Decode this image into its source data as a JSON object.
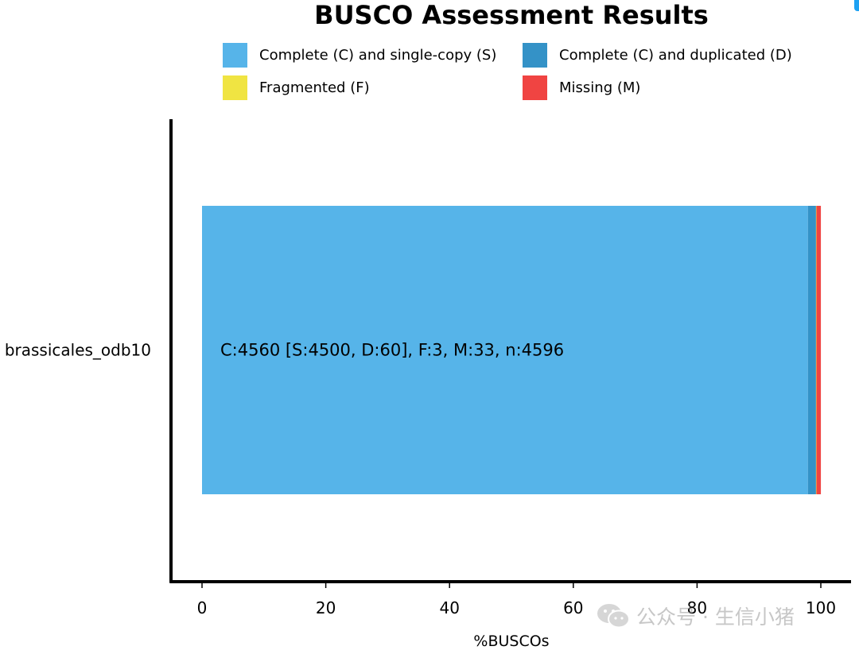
{
  "chart_data": {
    "type": "bar",
    "orientation": "horizontal",
    "stacked": true,
    "title": "BUSCO Assessment Results",
    "xlabel": "%BUSCOs",
    "ylabel": "",
    "xlim": [
      0,
      100
    ],
    "xticks": [
      0,
      20,
      40,
      60,
      80,
      100
    ],
    "categories": [
      "brassicales_odb10"
    ],
    "series": [
      {
        "name": "Complete (C) and single-copy (S)",
        "color": "#56B4E9",
        "values": [
          97.91
        ]
      },
      {
        "name": "Complete (C) and duplicated (D)",
        "color": "#3492C7",
        "values": [
          1.31
        ]
      },
      {
        "name": "Fragmented (F)",
        "color": "#F0E442",
        "values": [
          0.07
        ]
      },
      {
        "name": "Missing (M)",
        "color": "#F04442",
        "values": [
          0.72
        ]
      }
    ],
    "annotations": [
      "C:4560 [S:4500, D:60], F:3, M:33, n:4596"
    ],
    "legend_position": "top",
    "grid": false
  },
  "watermark": {
    "icon": "wechat-icon",
    "text": "公众号 · 生信小猪"
  }
}
